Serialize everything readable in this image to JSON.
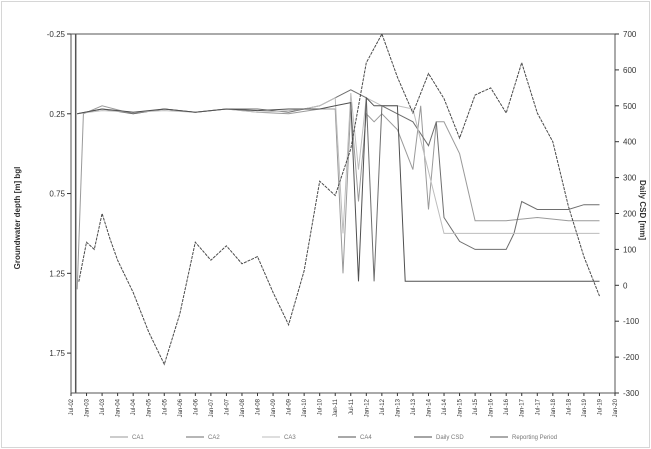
{
  "chart_data": {
    "type": "line",
    "ylabel": "Groundwater depth [m] bgl",
    "y2label": "Daily CSD [mm]",
    "ylim": [
      -0.25,
      2.0
    ],
    "y_ticks": [
      -0.25,
      0.25,
      0.75,
      1.25,
      1.75
    ],
    "y_tick_labels": [
      "-0.25",
      "0.25",
      "0.75",
      "1.25",
      "1.75"
    ],
    "y2lim": [
      -300,
      700
    ],
    "y2_ticks": [
      700,
      600,
      500,
      400,
      300,
      200,
      100,
      0,
      -100,
      -200,
      -300
    ],
    "y2_tick_labels": [
      "700",
      "600",
      "500",
      "400",
      "300",
      "200",
      "100",
      "0",
      "-100",
      "-200",
      "-300"
    ],
    "x_ticks": [
      "Jul-02",
      "Jan-03",
      "Jul-03",
      "Jan-04",
      "Jul-04",
      "Jan-05",
      "Jul-05",
      "Jan-06",
      "Jul-06",
      "Jan-07",
      "Jul-07",
      "Jan-08",
      "Jul-08",
      "Jan-09",
      "Jul-09",
      "Jan-10",
      "Jul-10",
      "Jan-11",
      "Jul-11",
      "Jan-12",
      "Jul-12",
      "Jan-13",
      "Jul-13",
      "Jan-14",
      "Jul-14",
      "Jan-15",
      "Jul-15",
      "Jan-16",
      "Jul-16",
      "Jan-17",
      "Jul-17",
      "Jan-18",
      "Jul-18",
      "Jan-19",
      "Jul-19",
      "Jan-20"
    ],
    "grid": false,
    "legend_position": "bottom",
    "series": [
      {
        "name": "CA1",
        "axis": "left",
        "color": "#9a9a9a",
        "x": [
          0.4,
          0.8,
          2,
          4,
          6,
          8,
          10,
          12,
          14,
          16,
          17,
          17.5,
          18,
          18.5,
          19,
          19.5,
          20,
          21,
          22,
          22.5,
          23,
          23.5,
          24,
          25,
          26,
          28,
          30,
          32,
          33,
          34
        ],
        "y": [
          1.35,
          0.25,
          0.2,
          0.25,
          0.22,
          0.24,
          0.22,
          0.24,
          0.25,
          0.22,
          0.22,
          1.25,
          0.2,
          0.8,
          0.25,
          0.3,
          0.25,
          0.35,
          0.6,
          0.2,
          0.85,
          0.3,
          0.3,
          0.5,
          0.92,
          0.92,
          0.9,
          0.92,
          0.92,
          0.92
        ]
      },
      {
        "name": "CA2",
        "axis": "left",
        "color": "#6e6e6e",
        "x": [
          0.4,
          2,
          4,
          6,
          8,
          10,
          12,
          14,
          16,
          17,
          18,
          19,
          19.5,
          20,
          21,
          22,
          23,
          23.5,
          24,
          25,
          26,
          27,
          28,
          28.5,
          29,
          30,
          31,
          32,
          33,
          34
        ],
        "y": [
          0.25,
          0.22,
          0.25,
          0.22,
          0.24,
          0.22,
          0.22,
          0.24,
          0.2,
          0.15,
          0.1,
          0.15,
          1.3,
          0.2,
          0.25,
          0.3,
          0.45,
          0.3,
          0.9,
          1.05,
          1.1,
          1.1,
          1.1,
          1.0,
          0.8,
          0.85,
          0.85,
          0.85,
          0.82,
          0.82
        ]
      },
      {
        "name": "CA3",
        "axis": "left",
        "color": "#bdbdbd",
        "x": [
          0.4,
          2,
          4,
          6,
          8,
          10,
          12,
          14,
          15,
          16,
          17,
          17.5,
          18,
          18.5,
          19,
          20,
          21,
          22,
          24,
          26,
          28,
          30,
          32,
          33,
          34
        ],
        "y": [
          0.25,
          0.23,
          0.24,
          0.23,
          0.24,
          0.22,
          0.24,
          0.23,
          0.22,
          0.2,
          0.15,
          1.0,
          0.12,
          0.6,
          0.15,
          0.2,
          0.2,
          0.22,
          1.0,
          1.0,
          1.0,
          1.0,
          1.0,
          1.0,
          1.0
        ]
      },
      {
        "name": "CA4",
        "axis": "left",
        "color": "#505050",
        "x": [
          0.4,
          2,
          4,
          6,
          8,
          10,
          12,
          14,
          16,
          17,
          18,
          18.5,
          19,
          19.5,
          20,
          21,
          21.5,
          22,
          24,
          26,
          28,
          30,
          32,
          33,
          34
        ],
        "y": [
          0.25,
          0.22,
          0.24,
          0.22,
          0.24,
          0.22,
          0.23,
          0.22,
          0.22,
          0.2,
          0.18,
          1.3,
          0.15,
          0.2,
          0.2,
          0.2,
          1.3,
          1.3,
          1.3,
          1.3,
          1.3,
          1.3,
          1.3,
          1.3,
          1.3
        ]
      },
      {
        "name": "Daily CSD",
        "axis": "right",
        "color": "#4a4a4a",
        "x": [
          0.5,
          1,
          1.5,
          2,
          2.5,
          3,
          4,
          5,
          6,
          7,
          8,
          9,
          10,
          11,
          12,
          13,
          14,
          15,
          16,
          17,
          18,
          19,
          20,
          21,
          22,
          23,
          24,
          25,
          26,
          27,
          28,
          29,
          30,
          31,
          32,
          33,
          34
        ],
        "y": [
          10,
          120,
          100,
          200,
          130,
          70,
          -20,
          -130,
          -220,
          -80,
          120,
          70,
          110,
          60,
          80,
          -20,
          -110,
          40,
          290,
          250,
          380,
          620,
          700,
          580,
          480,
          590,
          520,
          410,
          530,
          550,
          480,
          620,
          480,
          400,
          220,
          80,
          -30
        ]
      },
      {
        "name": "Reporting Period",
        "axis": "left",
        "color": "#555555",
        "x": [
          0.3,
          0.3
        ],
        "y": [
          -0.25,
          2.0
        ]
      }
    ]
  },
  "legend": {
    "items": [
      {
        "name": "CA1",
        "color": "#9a9a9a"
      },
      {
        "name": "CA2",
        "color": "#6e6e6e"
      },
      {
        "name": "CA3",
        "color": "#bdbdbd"
      },
      {
        "name": "CA4",
        "color": "#505050"
      },
      {
        "name": "Daily CSD",
        "color": "#4a4a4a"
      },
      {
        "name": "Reporting Period",
        "color": "#555555"
      }
    ]
  },
  "colors": {
    "axis": "#333333",
    "frame": "#d6d6d6"
  }
}
